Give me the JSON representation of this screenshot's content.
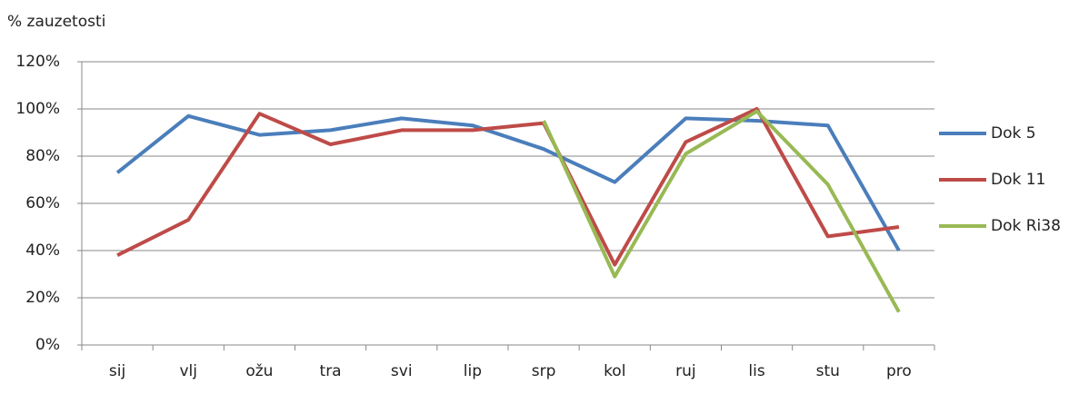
{
  "chart_data": {
    "type": "line",
    "y_label": "% zauzetosti",
    "categories": [
      "sij",
      "vlj",
      "ožu",
      "tra",
      "svi",
      "lip",
      "srp",
      "kol",
      "ruj",
      "lis",
      "stu",
      "pro"
    ],
    "series": [
      {
        "name": "Dok 5",
        "color": "#4a7ebb",
        "values": [
          73,
          97,
          89,
          91,
          96,
          93,
          83,
          69,
          96,
          95,
          93,
          40
        ]
      },
      {
        "name": "Dok 11",
        "color": "#be4b48",
        "values": [
          38,
          53,
          98,
          85,
          91,
          91,
          94,
          34,
          86,
          100,
          46,
          50
        ]
      },
      {
        "name": "Dok Ri38",
        "color": "#98b954",
        "values": [
          null,
          null,
          null,
          null,
          null,
          null,
          95,
          29,
          81,
          99,
          68,
          14
        ]
      }
    ],
    "ylim": [
      0,
      120
    ],
    "yticks": [
      {
        "value": 0,
        "label": "0%"
      },
      {
        "value": 20,
        "label": "20%"
      },
      {
        "value": 40,
        "label": "40%"
      },
      {
        "value": 60,
        "label": "60%"
      },
      {
        "value": 80,
        "label": "80%"
      },
      {
        "value": 100,
        "label": "100%"
      },
      {
        "value": 120,
        "label": "120%"
      }
    ],
    "grid": true,
    "legend": "right"
  }
}
